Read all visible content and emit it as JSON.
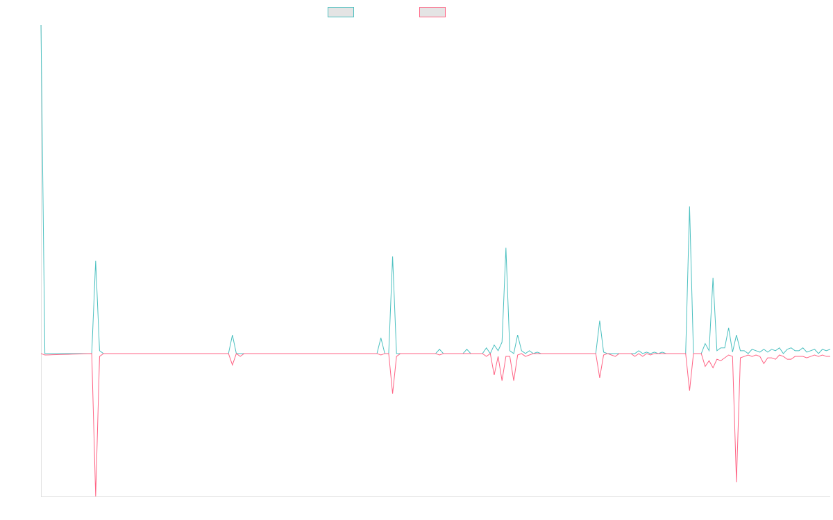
{
  "chart_data": {
    "type": "line",
    "title": "",
    "xlabel": "",
    "ylabel": "",
    "ylim": [
      -1.0,
      2.3
    ],
    "grid": false,
    "legend": "top-center",
    "x_count": 203,
    "series": [
      {
        "color": "#4bc0c0",
        "points": [
          [
            0,
            2.3
          ],
          [
            1,
            0
          ],
          [
            13,
            0
          ],
          [
            14,
            0.65
          ],
          [
            15,
            0.02
          ],
          [
            16,
            0
          ],
          [
            48,
            0
          ],
          [
            49,
            0.13
          ],
          [
            50,
            0
          ],
          [
            86,
            0
          ],
          [
            87,
            0.11
          ],
          [
            88,
            0
          ],
          [
            89,
            0
          ],
          [
            90,
            0.68
          ],
          [
            91,
            0
          ],
          [
            101,
            0
          ],
          [
            102,
            0.03
          ],
          [
            103,
            0
          ],
          [
            108,
            0
          ],
          [
            109,
            0.03
          ],
          [
            110,
            0
          ],
          [
            113,
            0
          ],
          [
            114,
            0.04
          ],
          [
            115,
            0
          ],
          [
            116,
            0.06
          ],
          [
            117,
            0.02
          ],
          [
            118,
            0.08
          ],
          [
            119,
            0.74
          ],
          [
            120,
            0.02
          ],
          [
            121,
            0
          ],
          [
            122,
            0.13
          ],
          [
            123,
            0.02
          ],
          [
            124,
            0
          ],
          [
            125,
            0.02
          ],
          [
            126,
            0
          ],
          [
            127,
            0.01
          ],
          [
            128,
            0
          ],
          [
            142,
            0
          ],
          [
            143,
            0.23
          ],
          [
            144,
            0.01
          ],
          [
            145,
            0
          ],
          [
            152,
            0
          ],
          [
            153,
            0.02
          ],
          [
            154,
            0
          ],
          [
            155,
            0.01
          ],
          [
            156,
            0
          ],
          [
            157,
            0.01
          ],
          [
            158,
            0
          ],
          [
            159,
            0.01
          ],
          [
            160,
            0
          ],
          [
            165,
            0
          ],
          [
            166,
            1.03
          ],
          [
            167,
            0
          ],
          [
            169,
            0
          ],
          [
            170,
            0.07
          ],
          [
            171,
            0.02
          ],
          [
            172,
            0.53
          ],
          [
            173,
            0.02
          ],
          [
            174,
            0.04
          ],
          [
            175,
            0.04
          ],
          [
            176,
            0.18
          ],
          [
            177,
            0.01
          ],
          [
            178,
            0.13
          ],
          [
            179,
            0.02
          ],
          [
            180,
            0.02
          ],
          [
            181,
            0
          ],
          [
            182,
            0.03
          ],
          [
            183,
            0.02
          ],
          [
            184,
            0.01
          ],
          [
            185,
            0.03
          ],
          [
            186,
            0.01
          ],
          [
            187,
            0.03
          ],
          [
            188,
            0.02
          ],
          [
            189,
            0.04
          ],
          [
            190,
            0
          ],
          [
            191,
            0.03
          ],
          [
            192,
            0.04
          ],
          [
            193,
            0.02
          ],
          [
            194,
            0.02
          ],
          [
            195,
            0.04
          ],
          [
            196,
            0.01
          ],
          [
            197,
            0.02
          ],
          [
            198,
            0.03
          ],
          [
            199,
            0
          ],
          [
            200,
            0.03
          ],
          [
            201,
            0.02
          ],
          [
            202,
            0.03
          ]
        ]
      },
      {
        "color": "#ff6384",
        "points": [
          [
            0,
            0
          ],
          [
            1,
            -0.01
          ],
          [
            13,
            0
          ],
          [
            14,
            -1.0
          ],
          [
            15,
            -0.02
          ],
          [
            16,
            0
          ],
          [
            48,
            0
          ],
          [
            49,
            -0.08
          ],
          [
            50,
            0
          ],
          [
            51,
            -0.02
          ],
          [
            52,
            0
          ],
          [
            86,
            0
          ],
          [
            87,
            -0.01
          ],
          [
            88,
            0
          ],
          [
            89,
            0
          ],
          [
            90,
            -0.28
          ],
          [
            91,
            -0.02
          ],
          [
            92,
            0
          ],
          [
            101,
            0
          ],
          [
            102,
            -0.01
          ],
          [
            103,
            0
          ],
          [
            113,
            0
          ],
          [
            114,
            -0.02
          ],
          [
            115,
            0
          ],
          [
            116,
            -0.15
          ],
          [
            117,
            -0.02
          ],
          [
            118,
            -0.19
          ],
          [
            119,
            -0.02
          ],
          [
            120,
            -0.02
          ],
          [
            121,
            -0.19
          ],
          [
            122,
            -0.01
          ],
          [
            123,
            0
          ],
          [
            124,
            -0.02
          ],
          [
            125,
            -0.01
          ],
          [
            126,
            0
          ],
          [
            142,
            0
          ],
          [
            143,
            -0.17
          ],
          [
            144,
            -0.01
          ],
          [
            145,
            0
          ],
          [
            146,
            -0.01
          ],
          [
            147,
            -0.02
          ],
          [
            148,
            0
          ],
          [
            151,
            0
          ],
          [
            152,
            -0.02
          ],
          [
            153,
            0
          ],
          [
            154,
            -0.02
          ],
          [
            155,
            0
          ],
          [
            156,
            -0.01
          ],
          [
            157,
            0
          ],
          [
            165,
            0
          ],
          [
            166,
            -0.26
          ],
          [
            167,
            0
          ],
          [
            169,
            0
          ],
          [
            170,
            -0.09
          ],
          [
            171,
            -0.05
          ],
          [
            172,
            -0.1
          ],
          [
            173,
            -0.04
          ],
          [
            174,
            -0.05
          ],
          [
            175,
            -0.03
          ],
          [
            176,
            -0.01
          ],
          [
            177,
            -0.02
          ],
          [
            178,
            -0.9
          ],
          [
            179,
            -0.03
          ],
          [
            180,
            -0.02
          ],
          [
            181,
            -0.01
          ],
          [
            182,
            -0.02
          ],
          [
            183,
            -0.01
          ],
          [
            184,
            -0.02
          ],
          [
            185,
            -0.07
          ],
          [
            186,
            -0.03
          ],
          [
            187,
            -0.03
          ],
          [
            188,
            -0.04
          ],
          [
            189,
            -0.01
          ],
          [
            190,
            -0.02
          ],
          [
            191,
            -0.04
          ],
          [
            192,
            -0.04
          ],
          [
            193,
            -0.02
          ],
          [
            194,
            -0.02
          ],
          [
            195,
            -0.02
          ],
          [
            196,
            -0.03
          ],
          [
            197,
            -0.02
          ],
          [
            198,
            -0.01
          ],
          [
            199,
            -0.02
          ],
          [
            200,
            -0.01
          ],
          [
            201,
            -0.02
          ],
          [
            202,
            -0.02
          ]
        ]
      }
    ]
  }
}
